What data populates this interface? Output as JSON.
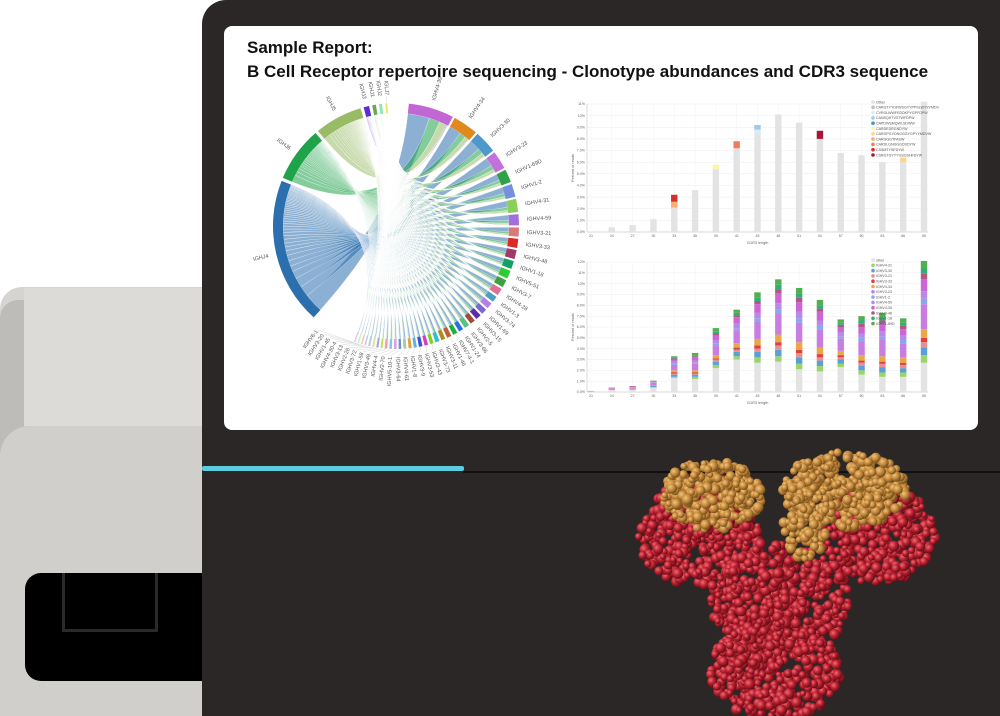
{
  "report": {
    "title_line1": "Sample Report:",
    "title_line2": "B Cell Receptor repertoire sequencing - Clonotype abundances and CDR3 sequence"
  },
  "colors": {
    "cyan_accent": "#5ccbe0",
    "device_dark": "#2b2727",
    "device_gray": "#d5d4d1",
    "other_bar": "#e3e3e3"
  },
  "chord_diagram": {
    "j_genes": [
      {
        "label": "IGHJ4",
        "value": 40,
        "color": "#2c6fae"
      },
      {
        "label": "IGHJ6",
        "value": 15,
        "color": "#1fa34a"
      },
      {
        "label": "IGHJ5",
        "value": 13,
        "color": "#99bb66"
      },
      {
        "label": "IGHJ3",
        "value": 1.5,
        "color": "#5b2bd6"
      },
      {
        "label": "IGHJ1",
        "value": 1,
        "color": "#6aa84f"
      },
      {
        "label": "IGHJ2",
        "value": 0.8,
        "color": "#8fe3c0"
      },
      {
        "label": "IGLJ7",
        "value": 0.6,
        "color": "#e8e86a"
      }
    ],
    "v_genes": [
      {
        "label": "IGHV4-39",
        "value": 9,
        "color": "#c266d6"
      },
      {
        "label": "IGHV4-34",
        "value": 5,
        "color": "#e08a1e"
      },
      {
        "label": "IGHV3-30",
        "value": 4.5,
        "color": "#4e98cc"
      },
      {
        "label": "IGHV3-23",
        "value": 3.6,
        "color": "#c46fdb"
      },
      {
        "label": "IGHV1-69D",
        "value": 2.6,
        "color": "#2fa148"
      },
      {
        "label": "IGHV1-2",
        "value": 2.6,
        "color": "#7391e0"
      },
      {
        "label": "IGHV4-31",
        "value": 2.6,
        "color": "#8bcf5a"
      },
      {
        "label": "IGHV4-59",
        "value": 2.2,
        "color": "#a56ee0"
      },
      {
        "label": "IGHV3-21",
        "value": 1.8,
        "color": "#d97a78"
      },
      {
        "label": "IGHV3-33",
        "value": 1.8,
        "color": "#db2b25"
      },
      {
        "label": "IGHV3-48",
        "value": 1.8,
        "color": "#a03a6a"
      },
      {
        "label": "IGHV1-18",
        "value": 1.6,
        "color": "#17a065"
      },
      {
        "label": "IGHV5-51",
        "value": 1.6,
        "color": "#2ecc2e"
      },
      {
        "label": "IGHV3-7",
        "value": 1.5,
        "color": "#3ea03e"
      },
      {
        "label": "IGHV4-28",
        "value": 1.4,
        "color": "#e07090"
      },
      {
        "label": "IGHV1-3",
        "value": 1.2,
        "color": "#4aa0c0"
      },
      {
        "label": "IGHV3-74",
        "value": 1.2,
        "color": "#b080e8"
      },
      {
        "label": "IGHV1-69",
        "value": 1.1,
        "color": "#7a66d6"
      },
      {
        "label": "IGHV3-15",
        "value": 1.1,
        "color": "#5b2bb0"
      },
      {
        "label": "IGHV2-5",
        "value": 1,
        "color": "#a04a3a"
      },
      {
        "label": "IGHV3-66",
        "value": 1,
        "color": "#58c080"
      },
      {
        "label": "IGHV1-24",
        "value": 0.9,
        "color": "#2a70e0"
      },
      {
        "label": "IGHV7-4-1",
        "value": 0.9,
        "color": "#20b040"
      },
      {
        "label": "IGHV1-46",
        "value": 0.9,
        "color": "#c06030"
      },
      {
        "label": "IGHV3-11",
        "value": 0.8,
        "color": "#b08a20"
      },
      {
        "label": "IGHV3-73",
        "value": 0.8,
        "color": "#30c0d0"
      },
      {
        "label": "IGHV3-43",
        "value": 0.7,
        "color": "#80d020"
      },
      {
        "label": "IGHV3-53",
        "value": 0.7,
        "color": "#d040c0"
      },
      {
        "label": "IGHV3-9",
        "value": 0.7,
        "color": "#4050d0"
      },
      {
        "label": "IGHV1-8",
        "value": 0.6,
        "color": "#60b0e0"
      },
      {
        "label": "IGHV4-61",
        "value": 0.6,
        "color": "#e0a040"
      },
      {
        "label": "IGHV3-64",
        "value": 0.6,
        "color": "#a0d0a0"
      },
      {
        "label": "IGHV5-10-1",
        "value": 0.5,
        "color": "#7090d0"
      },
      {
        "label": "IGHV2-70",
        "value": 0.5,
        "color": "#d0a0e0"
      },
      {
        "label": "IGHV4-4",
        "value": 0.5,
        "color": "#90c0f0"
      },
      {
        "label": "IGHV3-49",
        "value": 0.5,
        "color": "#f0a0a0"
      },
      {
        "label": "IGHV1-58",
        "value": 0.4,
        "color": "#c0e060"
      },
      {
        "label": "IGHV3-72",
        "value": 0.4,
        "color": "#a0a0f0"
      },
      {
        "label": "IGHV2-26",
        "value": 0.4,
        "color": "#e0e0a0"
      },
      {
        "label": "IGHV3-13",
        "value": 0.4,
        "color": "#b0d0f0"
      },
      {
        "label": "IGHV4-30-4",
        "value": 0.3,
        "color": "#d0c0f0"
      },
      {
        "label": "IGHV1-45",
        "value": 0.3,
        "color": "#f0d0a0"
      },
      {
        "label": "IGHV3-20",
        "value": 0.3,
        "color": "#c0f0d0"
      },
      {
        "label": "IGHV6-1",
        "value": 0.3,
        "color": "#f0c0e0"
      }
    ]
  },
  "chart_data": [
    {
      "type": "bar",
      "stacked": true,
      "xlabel": "CDR3 length",
      "ylabel": "Percent of reads",
      "categories": [
        "21",
        "24",
        "27",
        "30",
        "33",
        "36",
        "39",
        "42",
        "45",
        "48",
        "51",
        "54",
        "57",
        "60",
        "63",
        "66",
        "69"
      ],
      "ylim": [
        0,
        11
      ],
      "yticks": [
        "0.0%",
        "1.0%",
        "2.0%",
        "3.0%",
        "4.0%",
        "5.0%",
        "6.0%",
        "7.0%",
        "8.0%",
        "9.0%",
        "10%",
        "11%"
      ],
      "grid": true,
      "legend": "top-right",
      "series": [
        {
          "name": "Other",
          "color": "#e3e3e3",
          "values": [
            0.05,
            0.4,
            0.6,
            1.1,
            2.1,
            3.6,
            5.4,
            7.2,
            8.5,
            10.1,
            9.4,
            8.0,
            6.8,
            6.6,
            6.0,
            6.0,
            11.2
          ]
        },
        {
          "name": "CARGTYYDFWSGYYPPSLWYYYMDV",
          "color": "#bdbdbd",
          "values": [
            0,
            0,
            0,
            0,
            0,
            0,
            0,
            0,
            0,
            0,
            0,
            0,
            0,
            0,
            0,
            0,
            0
          ]
        },
        {
          "name": "CVRGLWWFEDDKPYGPFDPW",
          "color": "#d6ecf7",
          "values": [
            0,
            0,
            0,
            0,
            0,
            0,
            0,
            0,
            0.3,
            0,
            0,
            0,
            0,
            0,
            0,
            0,
            0
          ]
        },
        {
          "name": "CANSQHTVSTWFDPW",
          "color": "#9fcbe8",
          "values": [
            0,
            0,
            0,
            0,
            0,
            0,
            0,
            0,
            0.4,
            0,
            0,
            0,
            0,
            0,
            0,
            0,
            0
          ]
        },
        {
          "name": "CAPDWSMQWLSDWW",
          "color": "#4a90c8",
          "values": [
            0,
            0,
            0,
            0,
            0,
            0,
            0,
            0,
            0,
            0,
            0,
            0,
            0,
            0,
            0,
            0,
            0
          ]
        },
        {
          "name": "CARDEDRGNDYW",
          "color": "#fbf5b0",
          "values": [
            0,
            0,
            0,
            0,
            0,
            0,
            0.4,
            0,
            0,
            0,
            0,
            0,
            0,
            0,
            0,
            0,
            0
          ]
        },
        {
          "name": "CARGPGYDNGGGYGPYYMDVW",
          "color": "#fdd58a",
          "values": [
            0,
            0,
            0,
            0,
            0,
            0,
            0,
            0,
            0,
            0,
            0,
            0,
            0,
            0,
            0,
            0.4,
            0
          ]
        },
        {
          "name": "CARGGGTFASW",
          "color": "#fbae74",
          "values": [
            0,
            0,
            0,
            0,
            0.5,
            0,
            0,
            0,
            0,
            0,
            0,
            0,
            0,
            0,
            0,
            0,
            0
          ]
        },
        {
          "name": "CARDLGNGGGDSDYW",
          "color": "#f3795a",
          "values": [
            0,
            0,
            0,
            0,
            0,
            0,
            0,
            0.6,
            0,
            0,
            0,
            0,
            0,
            0,
            0,
            0,
            0
          ]
        },
        {
          "name": "CSSMTYSFDYW",
          "color": "#d7302b",
          "values": [
            0,
            0,
            0,
            0,
            0.6,
            0,
            0,
            0,
            0,
            0,
            0,
            0,
            0,
            0,
            0,
            0,
            0
          ]
        },
        {
          "name": "CSRGTGYYYGSGSHFDYW",
          "color": "#a8153a",
          "values": [
            0,
            0,
            0,
            0,
            0,
            0,
            0,
            0,
            0,
            0,
            0,
            0.7,
            0,
            0,
            0,
            0,
            0
          ]
        }
      ]
    },
    {
      "type": "bar",
      "stacked": true,
      "xlabel": "CDR3 length",
      "ylabel": "Percent of reads",
      "categories": [
        "21",
        "24",
        "27",
        "30",
        "33",
        "36",
        "39",
        "42",
        "45",
        "48",
        "51",
        "54",
        "57",
        "60",
        "63",
        "66",
        "69"
      ],
      "ylim": [
        0,
        12
      ],
      "yticks": [
        "0.0%",
        "1.0%",
        "2.0%",
        "3.0%",
        "4.0%",
        "5.0%",
        "6.0%",
        "7.0%",
        "8.0%",
        "9.0%",
        "10%",
        "11%",
        "12%"
      ],
      "grid": true,
      "legend": "top-right",
      "series": [
        {
          "name": "other",
          "color": "#e3e3e3",
          "values": [
            0.05,
            0.2,
            0.2,
            0.4,
            1.3,
            1.2,
            2.2,
            3.0,
            2.7,
            2.8,
            2.1,
            1.9,
            2.3,
            1.6,
            1.4,
            1.4,
            2.7
          ]
        },
        {
          "name": "IGHV4-31",
          "color": "#9ad46a",
          "values": [
            0,
            0,
            0,
            0.05,
            0.1,
            0.2,
            0.3,
            0.3,
            0.5,
            0.5,
            0.5,
            0.5,
            0.3,
            0.4,
            0.4,
            0.4,
            0.7
          ]
        },
        {
          "name": "IGHV3-30",
          "color": "#5aa0d8",
          "values": [
            0,
            0,
            0.05,
            0.1,
            0.2,
            0.2,
            0.3,
            0.4,
            0.5,
            0.6,
            0.6,
            0.5,
            0.4,
            0.4,
            0.5,
            0.4,
            0.7
          ]
        },
        {
          "name": "IGHV3-21",
          "color": "#e89090",
          "values": [
            0,
            0,
            0,
            0,
            0.1,
            0.1,
            0.2,
            0.2,
            0.3,
            0.4,
            0.4,
            0.3,
            0.2,
            0.3,
            0.3,
            0.3,
            0.5
          ]
        },
        {
          "name": "IGHV3-33",
          "color": "#e04040",
          "values": [
            0,
            0,
            0,
            0,
            0.1,
            0.1,
            0.1,
            0.2,
            0.3,
            0.3,
            0.3,
            0.3,
            0.2,
            0.2,
            0.2,
            0.2,
            0.4
          ]
        },
        {
          "name": "IGHV4-34",
          "color": "#e8a848",
          "values": [
            0,
            0,
            0.05,
            0.1,
            0.2,
            0.2,
            0.3,
            0.4,
            0.6,
            0.7,
            0.7,
            0.6,
            0.4,
            0.5,
            0.5,
            0.5,
            0.8
          ]
        },
        {
          "name": "IGHV3-23",
          "color": "#c87ee0",
          "values": [
            0.05,
            0.1,
            0.1,
            0.2,
            0.5,
            0.6,
            0.9,
            1.2,
            1.6,
            1.9,
            1.8,
            1.7,
            1.1,
            1.3,
            1.5,
            1.3,
            2.3
          ]
        },
        {
          "name": "IGHV1-2",
          "color": "#8aa8e8",
          "values": [
            0,
            0,
            0,
            0,
            0.1,
            0.1,
            0.2,
            0.2,
            0.3,
            0.4,
            0.4,
            0.3,
            0.2,
            0.3,
            0.3,
            0.3,
            0.5
          ]
        },
        {
          "name": "IGHV4-59",
          "color": "#b88ae8",
          "values": [
            0,
            0,
            0.05,
            0.05,
            0.2,
            0.2,
            0.3,
            0.4,
            0.5,
            0.6,
            0.6,
            0.5,
            0.4,
            0.4,
            0.5,
            0.4,
            0.7
          ]
        },
        {
          "name": "IGHV4-39",
          "color": "#cc66d8",
          "values": [
            0,
            0.05,
            0.05,
            0.1,
            0.2,
            0.3,
            0.4,
            0.6,
            0.8,
            0.9,
            0.9,
            0.8,
            0.5,
            0.6,
            0.7,
            0.6,
            1.1
          ]
        },
        {
          "name": "IGHV3-48",
          "color": "#b05a80",
          "values": [
            0,
            0.05,
            0.05,
            0,
            0.1,
            0.1,
            0.2,
            0.2,
            0.3,
            0.4,
            0.4,
            0.3,
            0.2,
            0.3,
            0.3,
            0.3,
            0.5
          ]
        },
        {
          "name": "IGHV1-18",
          "color": "#30b078",
          "values": [
            0,
            0,
            0,
            0,
            0.1,
            0.1,
            0.2,
            0.2,
            0.3,
            0.4,
            0.4,
            0.3,
            0.2,
            0.3,
            0.3,
            0.3,
            0.5
          ]
        },
        {
          "name": "IGHV1-69D",
          "color": "#50b050",
          "values": [
            0,
            0,
            0,
            0.05,
            0.1,
            0.2,
            0.3,
            0.3,
            0.5,
            0.5,
            0.5,
            0.5,
            0.3,
            0.4,
            0.4,
            0.4,
            0.7
          ]
        }
      ]
    }
  ]
}
